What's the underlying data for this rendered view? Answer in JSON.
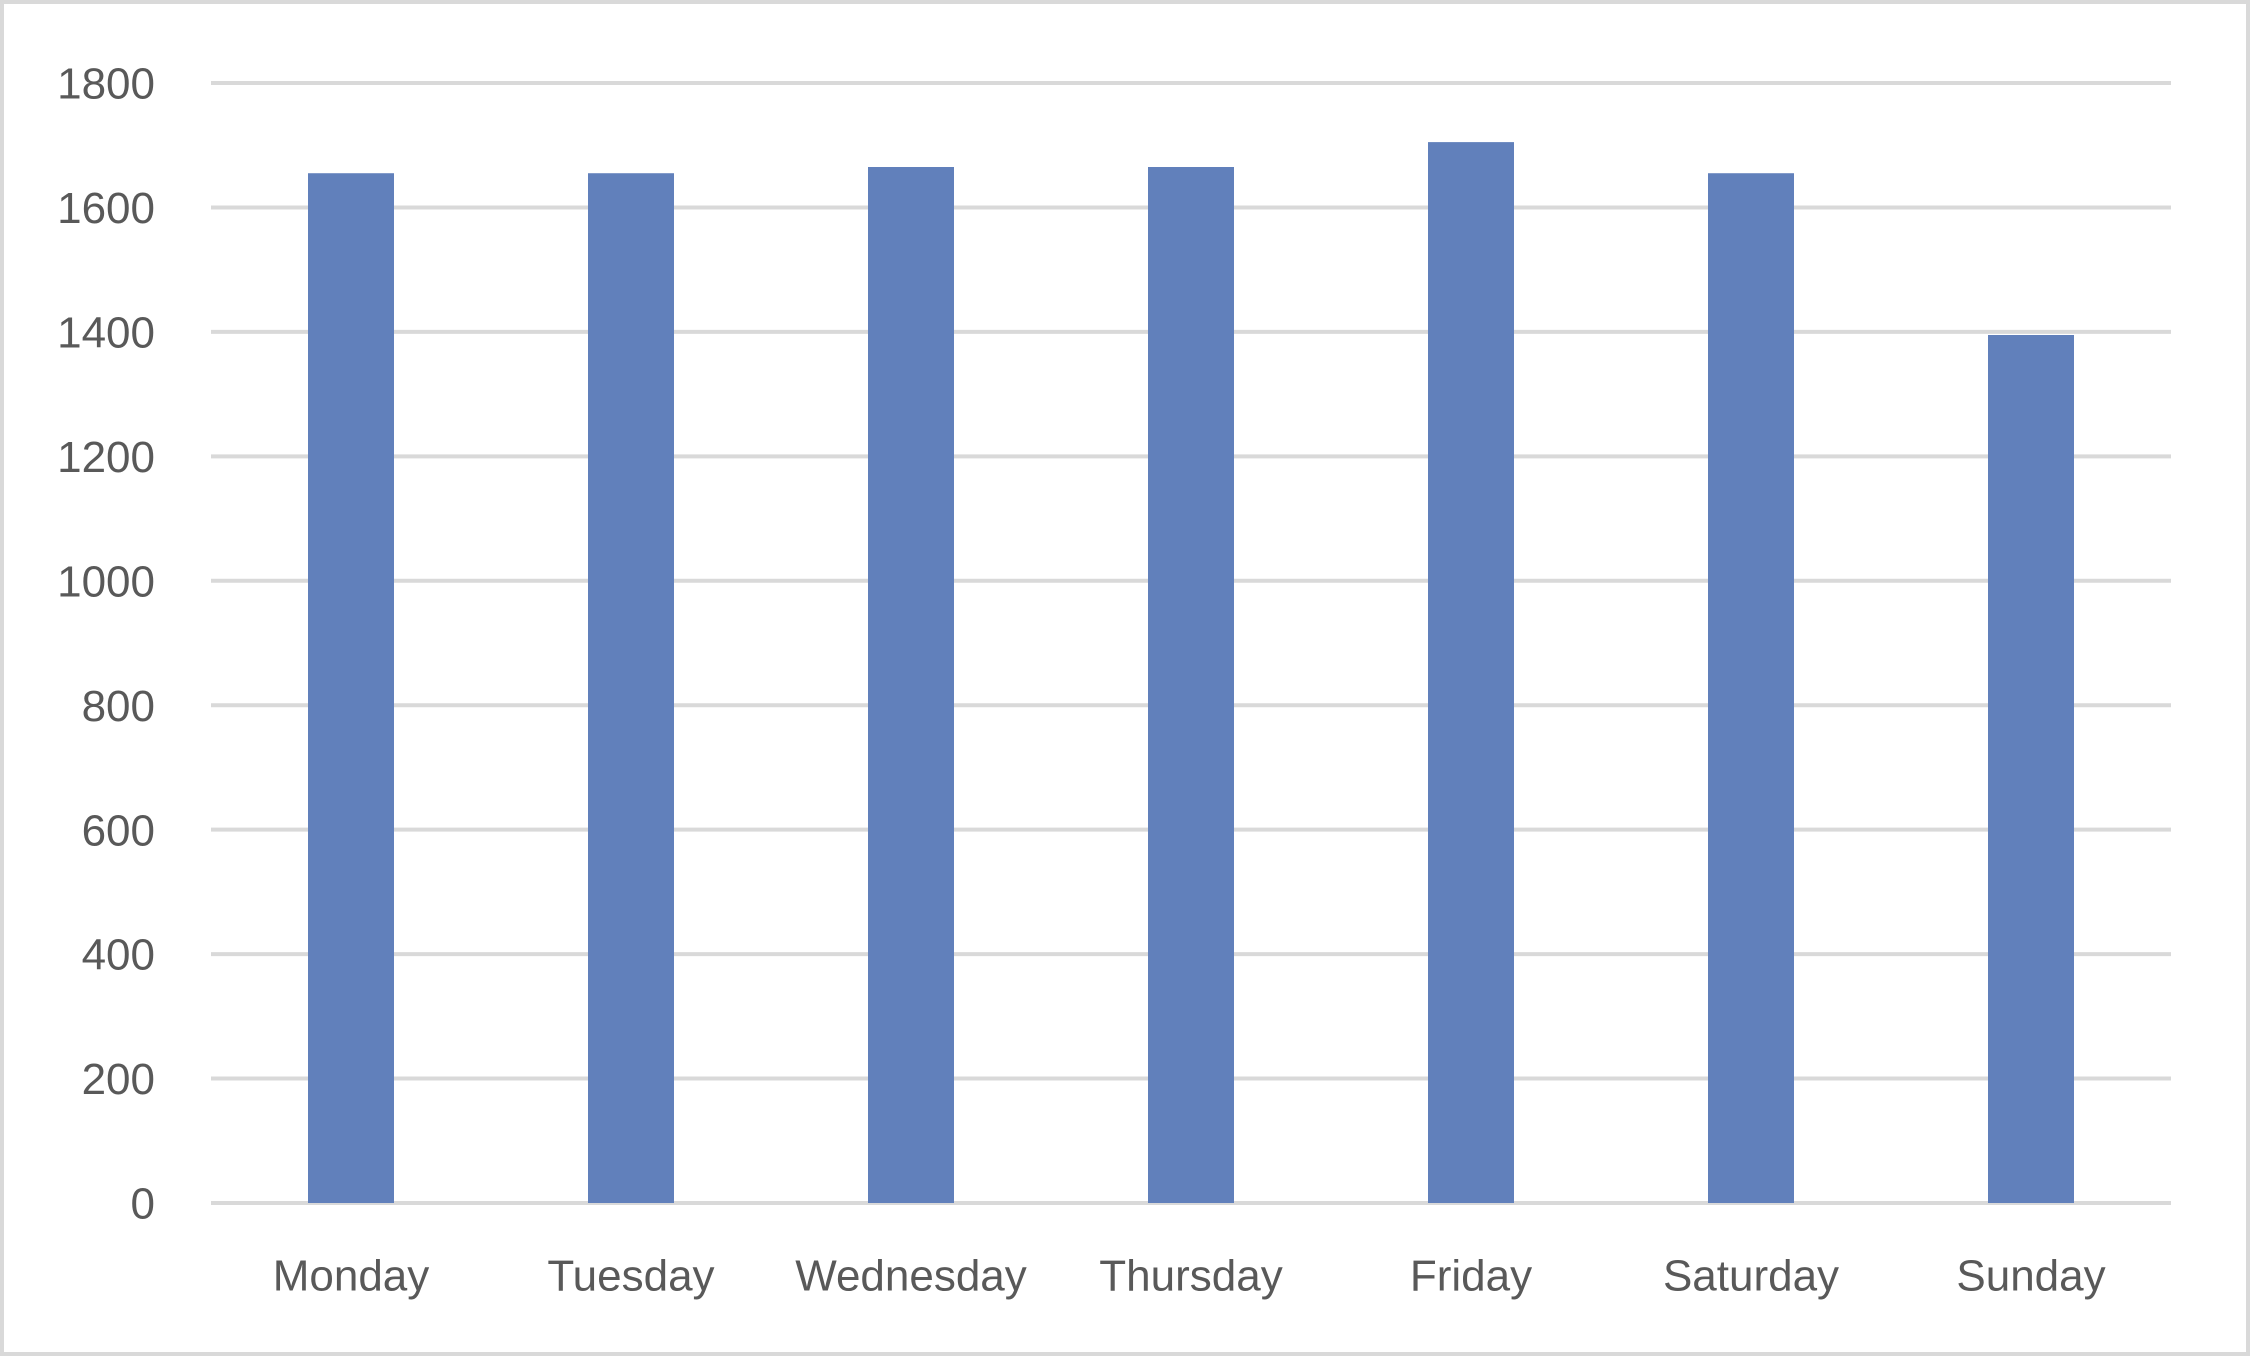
{
  "chart_data": {
    "type": "bar",
    "categories": [
      "Monday",
      "Tuesday",
      "Wednesday",
      "Thursday",
      "Friday",
      "Saturday",
      "Sunday"
    ],
    "values": [
      1655,
      1655,
      1665,
      1665,
      1705,
      1655,
      1395
    ],
    "color": "#6180bb",
    "ylim": [
      0,
      1800
    ],
    "yticks": [
      0,
      200,
      400,
      600,
      800,
      1000,
      1200,
      1400,
      1600,
      1800
    ],
    "grid": true
  }
}
